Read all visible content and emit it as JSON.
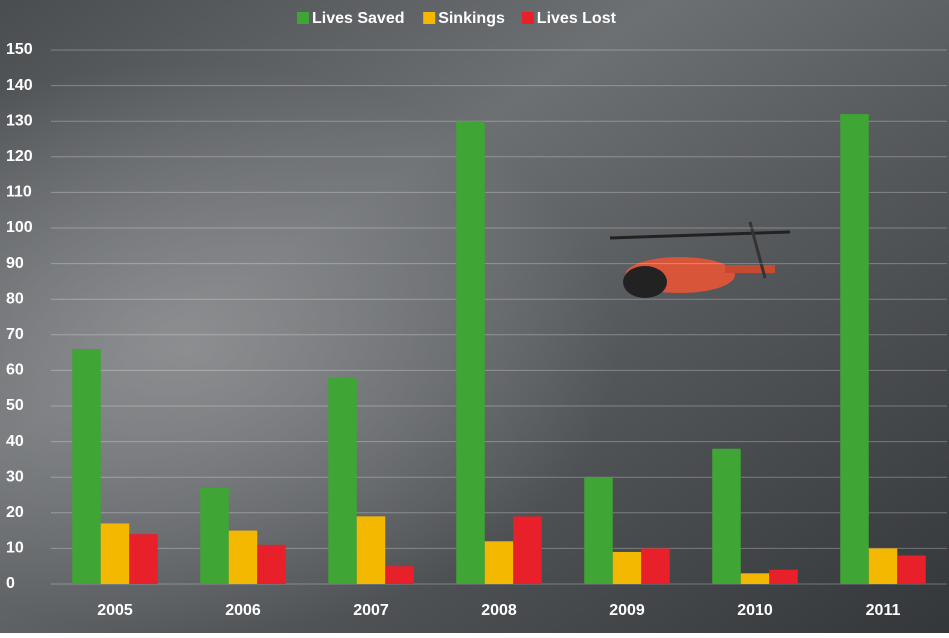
{
  "chart_data": {
    "type": "bar",
    "categories": [
      "2005",
      "2006",
      "2007",
      "2008",
      "2009",
      "2010",
      "2011"
    ],
    "series": [
      {
        "name": "Lives Saved",
        "color": "#3fa535",
        "values": [
          66,
          27,
          58,
          130,
          30,
          38,
          132
        ]
      },
      {
        "name": "Sinkings",
        "color": "#f5b800",
        "values": [
          17,
          15,
          19,
          12,
          9,
          3,
          10
        ]
      },
      {
        "name": "Lives Lost",
        "color": "#e8202a",
        "values": [
          14,
          11,
          5,
          19,
          10,
          4,
          8
        ]
      }
    ],
    "ylim": [
      0,
      150
    ],
    "yticks": [
      0,
      10,
      20,
      30,
      40,
      50,
      60,
      70,
      80,
      90,
      100,
      110,
      120,
      130,
      140,
      150
    ],
    "grid": true
  }
}
